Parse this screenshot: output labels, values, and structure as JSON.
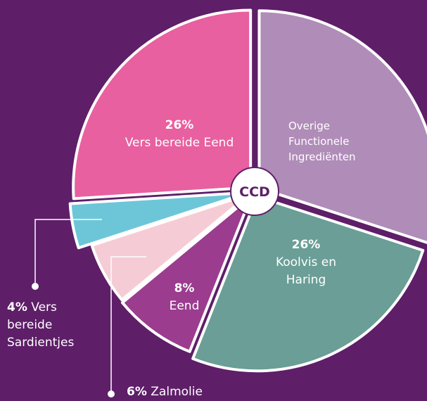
{
  "chart_data": {
    "type": "pie",
    "center_label": "CCD",
    "categories": [
      "Overige Functionele Ingrediënten",
      "Koolvis en Haring",
      "Eend",
      "Zalmolie",
      "Vers bereide Sardientjes",
      "Vers bereide Eend"
    ],
    "values": [
      30,
      26,
      8,
      6,
      4,
      26
    ],
    "value_labels": [
      null,
      "26%",
      "8%",
      "6%",
      "4%",
      "26%"
    ],
    "colors": [
      "#b08cb8",
      "#6a9e96",
      "#9b3c8e",
      "#f5ccd6",
      "#6cc6d8",
      "#e8609f"
    ]
  }
}
